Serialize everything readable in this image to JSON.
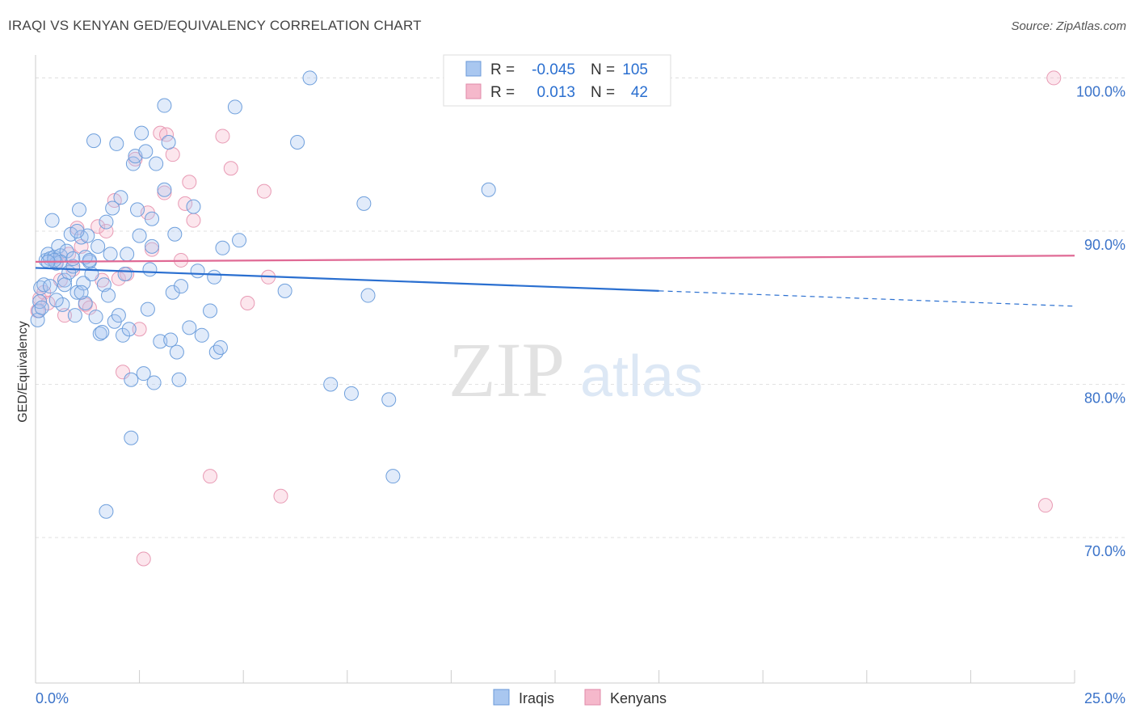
{
  "header": {
    "title": "IRAQI VS KENYAN GED/EQUIVALENCY CORRELATION CHART",
    "source": "Source: ZipAtlas.com"
  },
  "watermark": {
    "zip": "ZIP",
    "atlas": "atlas"
  },
  "legend": {
    "rows": [
      {
        "r_label": "R = ",
        "r_value": "-0.045",
        "n_label": "N = ",
        "n_value": "105",
        "color": "#a9c7f0"
      },
      {
        "r_label": "R = ",
        "r_value": "0.013",
        "n_label": "N = ",
        "n_value": "42",
        "color": "#f5b8cb"
      }
    ]
  },
  "bottom_legend": {
    "iraqis": "Iraqis",
    "kenyans": "Kenyans"
  },
  "chart_data": {
    "type": "scatter",
    "title": "IRAQI VS KENYAN GED/EQUIVALENCY CORRELATION CHART",
    "xlabel": "",
    "ylabel": "GED/Equivalency",
    "xlim": [
      0,
      25
    ],
    "ylim": [
      60.5,
      101.5
    ],
    "x_tick_labels": [
      "0.0%",
      "25.0%"
    ],
    "y_ticks": [
      70,
      80,
      90,
      100
    ],
    "y_tick_labels": [
      "70.0%",
      "80.0%",
      "90.0%",
      "100.0%"
    ],
    "grid": true,
    "legend_position": "top-center",
    "colors": {
      "iraqis": "#4a87d8",
      "kenyans": "#e87aa0",
      "iraqis_line": "#2a6fd0",
      "kenyans_line": "#e06a95"
    },
    "series": [
      {
        "name": "Iraqis",
        "trend": {
          "x0": 0,
          "y0": 87.6,
          "x1": 15,
          "y1": 86.1,
          "dashed_to_x": 25,
          "dashed_to_y": 85.1
        },
        "points": [
          [
            0.05,
            84.2
          ],
          [
            0.08,
            84.8
          ],
          [
            0.1,
            85.4
          ],
          [
            0.12,
            86.3
          ],
          [
            0.15,
            85.0
          ],
          [
            0.2,
            86.5
          ],
          [
            0.25,
            88.1
          ],
          [
            0.3,
            88.5
          ],
          [
            0.35,
            88.2
          ],
          [
            0.4,
            90.7
          ],
          [
            0.45,
            88.3
          ],
          [
            0.5,
            87.9
          ],
          [
            0.55,
            89.0
          ],
          [
            0.6,
            88.4
          ],
          [
            0.65,
            85.2
          ],
          [
            0.7,
            86.8
          ],
          [
            0.75,
            88.7
          ],
          [
            0.8,
            87.3
          ],
          [
            0.85,
            89.8
          ],
          [
            0.9,
            87.7
          ],
          [
            0.95,
            84.5
          ],
          [
            1.0,
            86.0
          ],
          [
            1.05,
            91.4
          ],
          [
            1.1,
            89.6
          ],
          [
            1.15,
            86.6
          ],
          [
            1.2,
            85.3
          ],
          [
            1.25,
            89.7
          ],
          [
            1.3,
            88.0
          ],
          [
            1.35,
            87.2
          ],
          [
            1.4,
            95.9
          ],
          [
            1.45,
            84.4
          ],
          [
            1.5,
            89.0
          ],
          [
            1.55,
            83.3
          ],
          [
            1.6,
            83.4
          ],
          [
            1.65,
            86.5
          ],
          [
            1.7,
            90.6
          ],
          [
            1.75,
            85.8
          ],
          [
            1.8,
            88.5
          ],
          [
            1.85,
            91.5
          ],
          [
            1.9,
            84.1
          ],
          [
            1.95,
            95.7
          ],
          [
            2.0,
            84.5
          ],
          [
            2.05,
            92.2
          ],
          [
            2.1,
            83.2
          ],
          [
            2.15,
            87.2
          ],
          [
            2.2,
            88.5
          ],
          [
            2.25,
            83.6
          ],
          [
            2.3,
            80.3
          ],
          [
            2.35,
            94.4
          ],
          [
            2.4,
            94.9
          ],
          [
            2.45,
            91.4
          ],
          [
            2.5,
            89.7
          ],
          [
            2.55,
            96.4
          ],
          [
            2.6,
            80.7
          ],
          [
            2.65,
            95.2
          ],
          [
            2.7,
            84.9
          ],
          [
            2.75,
            87.5
          ],
          [
            2.8,
            89.0
          ],
          [
            2.85,
            80.1
          ],
          [
            2.9,
            94.4
          ],
          [
            3.0,
            82.8
          ],
          [
            3.1,
            92.7
          ],
          [
            3.2,
            95.8
          ],
          [
            3.25,
            82.9
          ],
          [
            3.3,
            86.0
          ],
          [
            3.35,
            89.8
          ],
          [
            3.4,
            82.1
          ],
          [
            3.45,
            80.3
          ],
          [
            3.5,
            86.4
          ],
          [
            3.7,
            83.7
          ],
          [
            3.8,
            91.6
          ],
          [
            3.9,
            87.4
          ],
          [
            4.0,
            83.2
          ],
          [
            4.2,
            84.8
          ],
          [
            4.3,
            87.0
          ],
          [
            4.35,
            82.1
          ],
          [
            4.45,
            82.4
          ],
          [
            4.5,
            88.9
          ],
          [
            4.8,
            98.1
          ],
          [
            4.9,
            89.4
          ],
          [
            6.0,
            86.1
          ],
          [
            6.3,
            95.8
          ],
          [
            6.6,
            100.0
          ],
          [
            7.1,
            80.0
          ],
          [
            7.6,
            79.4
          ],
          [
            7.9,
            91.8
          ],
          [
            8.0,
            85.8
          ],
          [
            8.5,
            79.0
          ],
          [
            8.6,
            74.0
          ],
          [
            10.9,
            92.7
          ],
          [
            1.7,
            71.7
          ],
          [
            2.3,
            76.5
          ],
          [
            3.1,
            98.2
          ],
          [
            2.8,
            90.8
          ],
          [
            1.2,
            88.3
          ],
          [
            0.9,
            88.2
          ],
          [
            1.0,
            90.0
          ],
          [
            0.6,
            88.0
          ],
          [
            0.7,
            86.5
          ],
          [
            1.3,
            88.1
          ],
          [
            0.5,
            85.5
          ],
          [
            0.45,
            88.1
          ],
          [
            1.1,
            86.0
          ],
          [
            0.35,
            86.4
          ],
          [
            0.3,
            88.0
          ]
        ]
      },
      {
        "name": "Kenyans",
        "trend": {
          "x0": 0,
          "y0": 88.0,
          "x1": 25,
          "y1": 88.4
        },
        "points": [
          [
            0.05,
            84.8
          ],
          [
            0.1,
            85.6
          ],
          [
            0.2,
            86.0
          ],
          [
            0.3,
            85.3
          ],
          [
            0.5,
            88.0
          ],
          [
            0.6,
            86.8
          ],
          [
            0.7,
            84.5
          ],
          [
            0.8,
            88.5
          ],
          [
            0.9,
            87.5
          ],
          [
            1.0,
            90.2
          ],
          [
            1.1,
            89.0
          ],
          [
            1.2,
            85.2
          ],
          [
            1.3,
            85.0
          ],
          [
            1.5,
            90.3
          ],
          [
            1.6,
            86.8
          ],
          [
            1.7,
            90.0
          ],
          [
            1.9,
            92.0
          ],
          [
            2.0,
            86.9
          ],
          [
            2.1,
            80.8
          ],
          [
            2.2,
            87.2
          ],
          [
            2.4,
            94.7
          ],
          [
            2.5,
            83.6
          ],
          [
            2.6,
            68.6
          ],
          [
            2.7,
            91.2
          ],
          [
            2.8,
            88.8
          ],
          [
            3.0,
            96.4
          ],
          [
            3.1,
            92.5
          ],
          [
            3.15,
            96.3
          ],
          [
            3.3,
            95.0
          ],
          [
            3.5,
            88.1
          ],
          [
            3.6,
            91.8
          ],
          [
            3.7,
            93.2
          ],
          [
            3.8,
            90.7
          ],
          [
            4.2,
            74.0
          ],
          [
            4.5,
            96.2
          ],
          [
            4.7,
            94.1
          ],
          [
            5.1,
            85.3
          ],
          [
            5.5,
            92.6
          ],
          [
            5.6,
            87.0
          ],
          [
            5.9,
            72.7
          ],
          [
            24.3,
            72.1
          ],
          [
            24.5,
            100.0
          ]
        ]
      }
    ]
  }
}
